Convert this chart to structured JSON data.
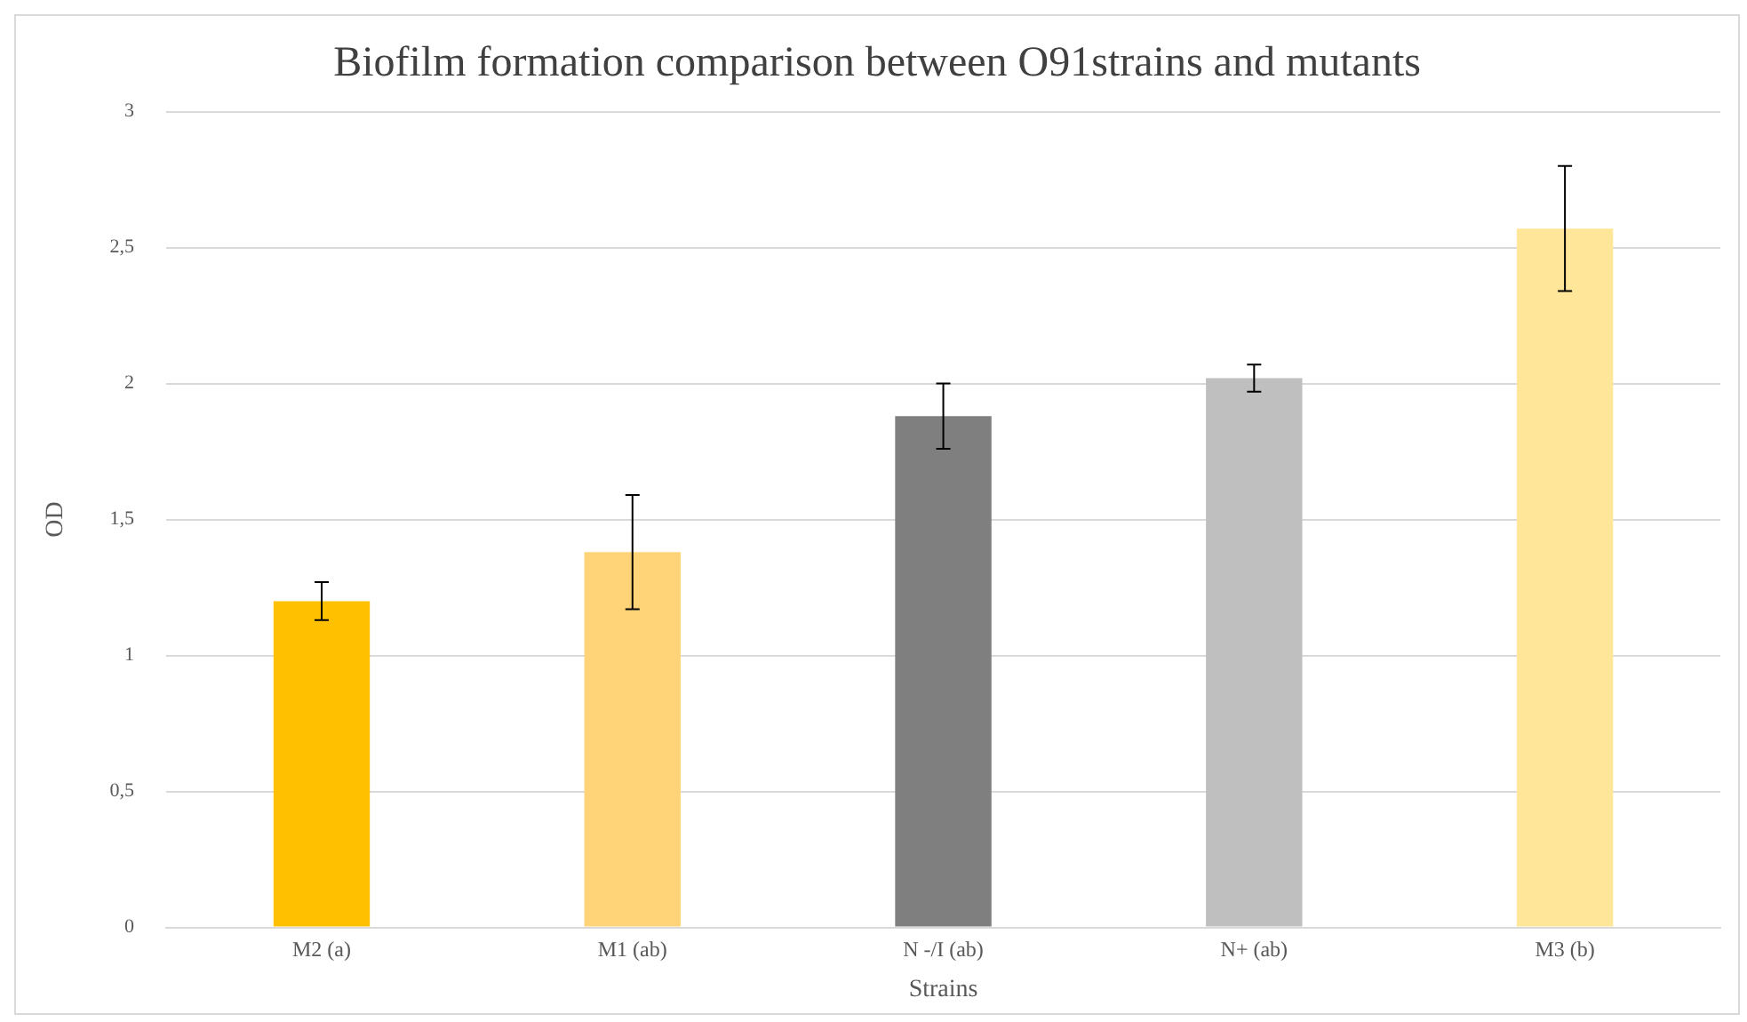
{
  "chart_data": {
    "type": "bar",
    "title": "Biofilm formation comparison between O91strains and mutants",
    "xlabel": "Strains",
    "ylabel": "OD",
    "categories": [
      "M2 (a)",
      "M1 (ab)",
      "N -/I (ab)",
      "N+ (ab)",
      "M3 (b)"
    ],
    "values": [
      1.2,
      1.38,
      1.88,
      2.02,
      2.57
    ],
    "colors": [
      "#ffc000",
      "#ffd478",
      "#7f7f7f",
      "#bfbfbf",
      "#ffe699"
    ],
    "errors": [
      0.07,
      0.21,
      0.12,
      0.05,
      0.23
    ],
    "ylim": [
      0,
      3
    ],
    "yticks": [
      0,
      {
        "value": 0.5,
        "label": "0,5"
      },
      1,
      {
        "value": 1.5,
        "label": "1,5"
      },
      2,
      {
        "value": 2.5,
        "label": "2,5"
      },
      3
    ],
    "grid": "y",
    "legend": false
  }
}
